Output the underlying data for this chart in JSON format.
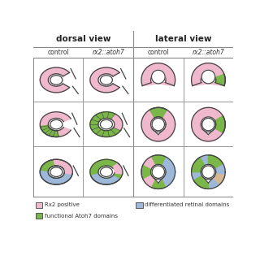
{
  "title_dorsal": "dorsal view",
  "title_lateral": "lateral view",
  "col_labels": [
    "control",
    "rx2::atoh7",
    "control",
    "rx2::atoh7"
  ],
  "pink_color": "#f0b8cc",
  "green_color": "#7ab648",
  "blue_color": "#9db8d8",
  "outline_color": "#444444",
  "bg_color": "#ffffff",
  "grid_color": "#aaaaaa",
  "legend_pink_label": "Rx2 positive",
  "legend_green_label": "functional Atoh7 domains",
  "legend_blue_label": "differentiated retinal domains",
  "figsize": [
    3.2,
    3.2
  ],
  "dpi": 100
}
